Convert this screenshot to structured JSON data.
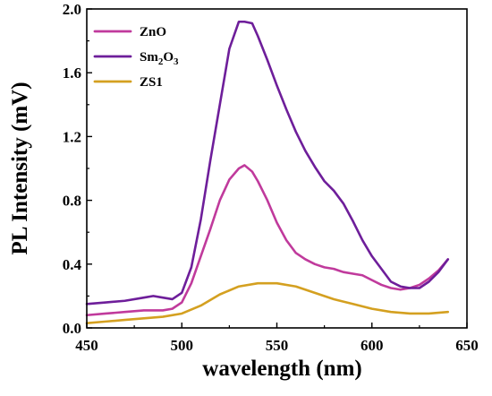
{
  "chart_data": {
    "type": "line",
    "xlabel": "wavelength (nm)",
    "ylabel": "PL Intensity (mV)",
    "xlim": [
      450,
      650
    ],
    "ylim": [
      0.0,
      2.0
    ],
    "xticks": [
      450,
      500,
      550,
      600,
      650
    ],
    "yticks": [
      0.0,
      0.4,
      0.8,
      1.2,
      1.6,
      2.0
    ],
    "xtick_labels": [
      "450",
      "500",
      "550",
      "600",
      "650"
    ],
    "ytick_labels": [
      "0.0",
      "0.4",
      "0.8",
      "1.2",
      "1.6",
      "2.0"
    ],
    "grid": false,
    "legend_position": "top-left",
    "series": [
      {
        "name": "ZnO",
        "legend_parts": [
          {
            "text": "ZnO",
            "sub": false
          }
        ],
        "color": "#c03a9c",
        "x": [
          450,
          460,
          470,
          480,
          490,
          495,
          500,
          505,
          510,
          515,
          520,
          525,
          530,
          533,
          537,
          540,
          545,
          550,
          555,
          560,
          565,
          570,
          575,
          580,
          585,
          590,
          595,
          600,
          605,
          610,
          615,
          620,
          625,
          630,
          635,
          640
        ],
        "y": [
          0.08,
          0.09,
          0.1,
          0.11,
          0.11,
          0.12,
          0.16,
          0.28,
          0.45,
          0.62,
          0.8,
          0.93,
          1.0,
          1.02,
          0.98,
          0.92,
          0.8,
          0.66,
          0.55,
          0.47,
          0.43,
          0.4,
          0.38,
          0.37,
          0.35,
          0.34,
          0.33,
          0.3,
          0.27,
          0.25,
          0.24,
          0.25,
          0.27,
          0.31,
          0.36,
          0.43
        ]
      },
      {
        "name": "Sm2O3",
        "legend_parts": [
          {
            "text": "Sm",
            "sub": false
          },
          {
            "text": "2",
            "sub": true
          },
          {
            "text": "O",
            "sub": false
          },
          {
            "text": "3",
            "sub": true
          }
        ],
        "color": "#6e1e9a",
        "x": [
          450,
          460,
          470,
          480,
          485,
          490,
          495,
          500,
          505,
          510,
          515,
          520,
          525,
          530,
          533,
          537,
          540,
          545,
          550,
          555,
          560,
          565,
          570,
          575,
          580,
          585,
          590,
          595,
          600,
          605,
          610,
          615,
          620,
          625,
          630,
          635,
          640
        ],
        "y": [
          0.15,
          0.16,
          0.17,
          0.19,
          0.2,
          0.19,
          0.18,
          0.22,
          0.38,
          0.68,
          1.05,
          1.4,
          1.75,
          1.92,
          1.92,
          1.91,
          1.83,
          1.68,
          1.52,
          1.37,
          1.23,
          1.11,
          1.01,
          0.92,
          0.86,
          0.78,
          0.67,
          0.55,
          0.45,
          0.37,
          0.29,
          0.26,
          0.25,
          0.25,
          0.29,
          0.35,
          0.43
        ]
      },
      {
        "name": "ZS1",
        "legend_parts": [
          {
            "text": "ZS1",
            "sub": false
          }
        ],
        "color": "#d4a020",
        "x": [
          450,
          460,
          470,
          480,
          490,
          500,
          510,
          520,
          530,
          540,
          550,
          560,
          570,
          580,
          590,
          600,
          610,
          620,
          630,
          640
        ],
        "y": [
          0.03,
          0.04,
          0.05,
          0.06,
          0.07,
          0.09,
          0.14,
          0.21,
          0.26,
          0.28,
          0.28,
          0.26,
          0.22,
          0.18,
          0.15,
          0.12,
          0.1,
          0.09,
          0.09,
          0.1
        ]
      }
    ]
  }
}
